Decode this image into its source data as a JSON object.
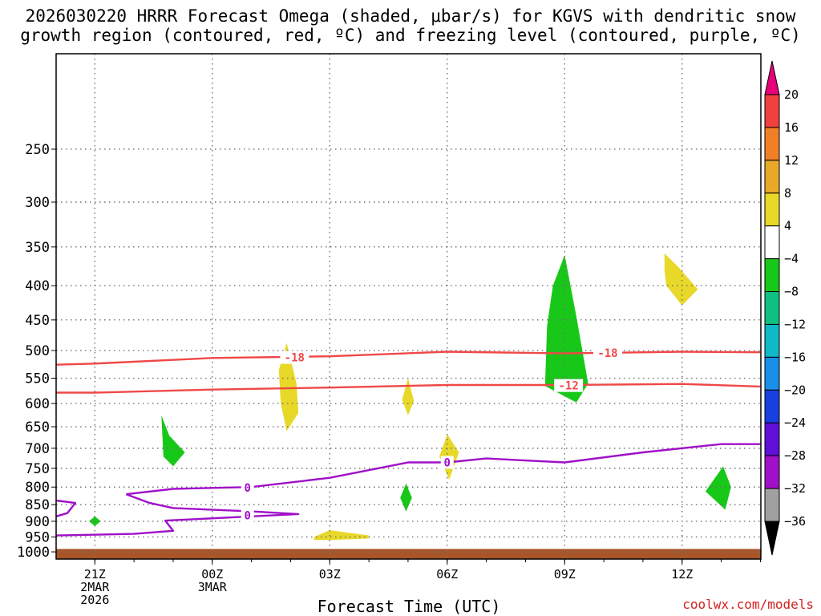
{
  "chart_data": {
    "type": "heatmap",
    "title": "2026030220 HRRR Forecast Omega (shaded, μbar/s) for KGVS with dendritic snow",
    "subtitle": "growth region (contoured, red, ºC) and freezing level (contoured, purple, ºC)",
    "xlabel": "Forecast Time (UTC)",
    "ylabel": "",
    "x_ticks": [
      {
        "hour": 0,
        "label": "21Z",
        "sub": [
          "2MAR",
          "2026"
        ]
      },
      {
        "hour": 3,
        "label": "00Z",
        "sub": [
          "3MAR"
        ]
      },
      {
        "hour": 6,
        "label": "03Z",
        "sub": []
      },
      {
        "hour": 9,
        "label": "06Z",
        "sub": []
      },
      {
        "hour": 12,
        "label": "09Z",
        "sub": []
      },
      {
        "hour": 15,
        "label": "12Z",
        "sub": []
      }
    ],
    "xlim_hours": [
      -1,
      17
    ],
    "y_levels": [
      250,
      300,
      350,
      400,
      450,
      500,
      550,
      600,
      650,
      700,
      750,
      800,
      850,
      900,
      950,
      1000
    ],
    "ylim": [
      180,
      1025
    ],
    "y_scale": "log-pressure",
    "grid": true,
    "colorbar": {
      "ticks": [
        "20",
        "16",
        "12",
        "8",
        "4",
        "−4",
        "−8",
        "−12",
        "−16",
        "−20",
        "−24",
        "−28",
        "−32",
        "−36"
      ],
      "colors": [
        "#e8007a",
        "#f04040",
        "#f08028",
        "#e8a828",
        "#e8d828",
        "#ffffff",
        "#18c818",
        "#10c080",
        "#10b8c8",
        "#1890e8",
        "#1840e0",
        "#6010d8",
        "#a010c8",
        "#a0a0a0",
        "#000000"
      ]
    },
    "contours": [
      {
        "label": "-18",
        "color": "#f04848",
        "points": [
          [
            -1,
            525
          ],
          [
            0,
            523
          ],
          [
            3,
            513
          ],
          [
            6,
            510
          ],
          [
            9,
            502
          ],
          [
            12,
            505
          ],
          [
            15,
            502
          ],
          [
            17,
            503
          ]
        ],
        "label_at": [
          [
            5.1,
            512
          ],
          [
            13.1,
            504
          ]
        ]
      },
      {
        "label": "-12",
        "color": "#f04848",
        "points": [
          [
            -1,
            578
          ],
          [
            0,
            578
          ],
          [
            3,
            572
          ],
          [
            6,
            568
          ],
          [
            9,
            563
          ],
          [
            12,
            563
          ],
          [
            15,
            561
          ],
          [
            17,
            566
          ]
        ],
        "label_at": [
          [
            12.1,
            564
          ]
        ]
      },
      {
        "label": "0",
        "color": "#a010c8",
        "points": [
          [
            0.8,
            820
          ],
          [
            2,
            805
          ],
          [
            4,
            800
          ],
          [
            6,
            775
          ],
          [
            8,
            735
          ],
          [
            9,
            735
          ],
          [
            10,
            725
          ],
          [
            12,
            735
          ],
          [
            14,
            710
          ],
          [
            16,
            690
          ],
          [
            17,
            690
          ]
        ],
        "label_at": [
          [
            3.9,
            802
          ],
          [
            9.0,
            735
          ]
        ]
      },
      {
        "label": "0",
        "color": "#a010c8",
        "points": [
          [
            -1,
            945
          ],
          [
            1,
            940
          ],
          [
            2,
            930
          ],
          [
            1.8,
            898
          ],
          [
            4,
            885
          ],
          [
            5.2,
            878
          ],
          [
            4,
            870
          ],
          [
            2,
            860
          ],
          [
            1.4,
            845
          ],
          [
            0.8,
            820
          ]
        ],
        "label_at": [
          [
            3.9,
            882
          ]
        ]
      },
      {
        "label": "",
        "color": "#a010c8",
        "points": [
          [
            -1,
            838
          ],
          [
            -0.5,
            845
          ],
          [
            -0.7,
            875
          ],
          [
            -1,
            885
          ]
        ],
        "label_at": []
      }
    ],
    "omega_regions": [
      {
        "color": "#18c818",
        "points": [
          [
            1.7,
            625
          ],
          [
            1.9,
            670
          ],
          [
            2.3,
            710
          ],
          [
            2.0,
            745
          ],
          [
            1.75,
            720
          ]
        ]
      },
      {
        "color": "#18c818",
        "points": [
          [
            -0.15,
            900
          ],
          [
            0,
            885
          ],
          [
            0.15,
            900
          ],
          [
            0,
            915
          ]
        ]
      },
      {
        "color": "#e8d828",
        "points": [
          [
            4.9,
            487
          ],
          [
            5.15,
            560
          ],
          [
            5.2,
            620
          ],
          [
            4.9,
            660
          ],
          [
            4.75,
            600
          ],
          [
            4.7,
            535
          ]
        ]
      },
      {
        "color": "#e8d828",
        "points": [
          [
            8.0,
            550
          ],
          [
            8.15,
            595
          ],
          [
            8.0,
            625
          ],
          [
            7.85,
            592
          ]
        ]
      },
      {
        "color": "#18c818",
        "points": [
          [
            7.95,
            790
          ],
          [
            8.1,
            830
          ],
          [
            7.95,
            870
          ],
          [
            7.8,
            830
          ]
        ]
      },
      {
        "color": "#e8d828",
        "points": [
          [
            9.0,
            667
          ],
          [
            9.3,
            710
          ],
          [
            9.05,
            780
          ],
          [
            8.8,
            720
          ]
        ]
      },
      {
        "color": "#e8d828",
        "points": [
          [
            5.6,
            950
          ],
          [
            6.0,
            928
          ],
          [
            7.0,
            945
          ],
          [
            7.0,
            955
          ],
          [
            6.0,
            960
          ],
          [
            5.6,
            960
          ]
        ]
      },
      {
        "color": "#18c818",
        "points": [
          [
            12.0,
            360
          ],
          [
            12.3,
            445
          ],
          [
            12.6,
            560
          ],
          [
            12.3,
            598
          ],
          [
            11.5,
            565
          ],
          [
            11.55,
            460
          ],
          [
            11.7,
            400
          ]
        ]
      },
      {
        "color": "#e8d828",
        "points": [
          [
            14.55,
            358
          ],
          [
            14.9,
            375
          ],
          [
            15.4,
            405
          ],
          [
            15.0,
            428
          ],
          [
            14.6,
            400
          ],
          [
            14.55,
            380
          ]
        ]
      },
      {
        "color": "#18c818",
        "points": [
          [
            16.05,
            745
          ],
          [
            16.25,
            800
          ],
          [
            16.1,
            865
          ],
          [
            15.6,
            812
          ]
        ]
      }
    ],
    "ground": {
      "color": "#a85528",
      "from_pressure": 990
    }
  },
  "credit": "coolwx.com/models"
}
